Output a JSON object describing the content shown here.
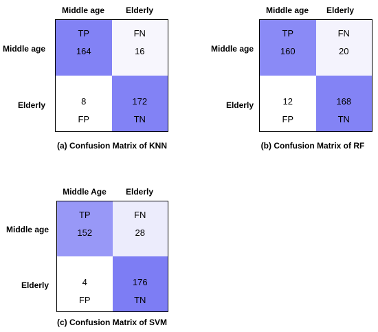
{
  "chart_data": [
    {
      "type": "heatmap",
      "title": "(a) Confusion Matrix of KNN",
      "column_labels": [
        "Middle age",
        "Elderly"
      ],
      "row_labels": [
        "Middle age",
        "Elderly"
      ],
      "cells": [
        [
          {
            "tag": "TP",
            "value": 164,
            "color": "#8282f5"
          },
          {
            "tag": "FN",
            "value": 16,
            "color": "#f7f6fd"
          }
        ],
        [
          {
            "tag": "FP",
            "value": 8,
            "color": "#ffffff"
          },
          {
            "tag": "TN",
            "value": 172,
            "color": "#8282f5"
          }
        ]
      ]
    },
    {
      "type": "heatmap",
      "title": "(b) Confusion Matrix of RF",
      "column_labels": [
        "Middle age",
        "Elderly"
      ],
      "row_labels": [
        "Middle age",
        "Elderly"
      ],
      "cells": [
        [
          {
            "tag": "TP",
            "value": 160,
            "color": "#8a8af6"
          },
          {
            "tag": "FN",
            "value": 20,
            "color": "#f4f3fd"
          }
        ],
        [
          {
            "tag": "FP",
            "value": 12,
            "color": "#ffffff"
          },
          {
            "tag": "TN",
            "value": 168,
            "color": "#8383f5"
          }
        ]
      ]
    },
    {
      "type": "heatmap",
      "title": "(c) Confusion Matrix of SVM",
      "column_labels": [
        "Middle Age",
        "Elderly"
      ],
      "row_labels": [
        "Middle age",
        "Elderly"
      ],
      "cells": [
        [
          {
            "tag": "TP",
            "value": 152,
            "color": "#9898f7"
          },
          {
            "tag": "FN",
            "value": 28,
            "color": "#ececfc"
          }
        ],
        [
          {
            "tag": "FP",
            "value": 4,
            "color": "#ffffff"
          },
          {
            "tag": "TN",
            "value": 176,
            "color": "#7d7df4"
          }
        ]
      ]
    }
  ]
}
